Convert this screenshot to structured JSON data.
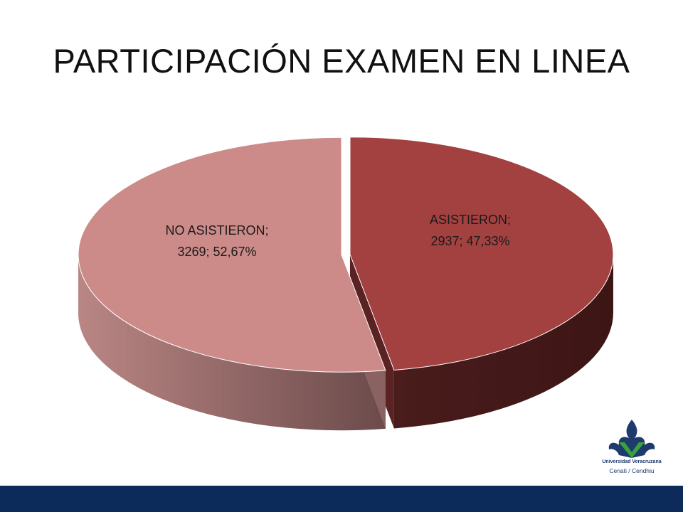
{
  "title": "PARTICIPACIÓN EXAMEN EN LINEA",
  "logo": {
    "line1": "Universidad Veracruzana",
    "line2": "Cenati / Cendhiu",
    "icon": "uv-flame-logo-icon"
  },
  "colors": {
    "footer_bar": "#0c2a5a",
    "slice_asistieron": "#a34140",
    "slice_no_asistieron": "#cc8b89"
  },
  "chart_data": {
    "type": "pie",
    "style": "3d",
    "slices": [
      {
        "label": "ASISTIERON",
        "value": 2937,
        "percent": "47,33%",
        "label_line1": "ASISTIERON;",
        "label_line2": "2937; 47,33%",
        "color": "#a34140"
      },
      {
        "label": "NO ASISTIERON",
        "value": 3269,
        "percent": "52,67%",
        "label_line1": "NO ASISTIERON;",
        "label_line2": "3269; 52,67%",
        "color": "#cc8b89"
      }
    ],
    "legend": "none"
  }
}
